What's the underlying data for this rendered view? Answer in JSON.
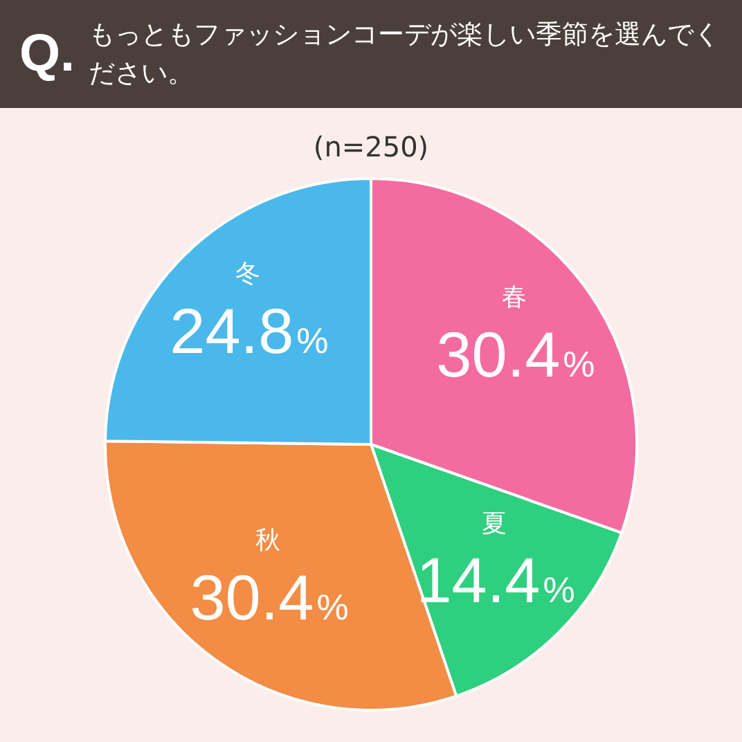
{
  "chart_data": {
    "type": "pie",
    "title": "もっともファッションコーデが楽しい季節を選んでください。",
    "subtitle": "(n=250)",
    "annotations": [
      "Q."
    ],
    "categories": [
      "春",
      "夏",
      "秋",
      "冬"
    ],
    "values": [
      30.4,
      14.4,
      30.4,
      24.8
    ],
    "colors": [
      "#f46ba0",
      "#2ecf7f",
      "#f38c44",
      "#4ab8ea"
    ],
    "value_labels": [
      "30.4%",
      "14.4%",
      "30.4%",
      "24.8%"
    ],
    "legend": false
  }
}
